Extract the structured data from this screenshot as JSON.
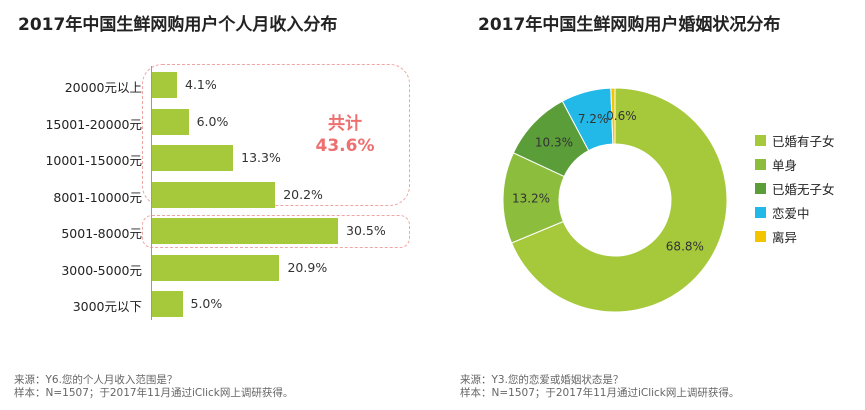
{
  "chart_data": [
    {
      "type": "bar",
      "orientation": "horizontal",
      "title": "2017年中国生鲜网购用户个人月收入分布",
      "categories": [
        "20000元以上",
        "15001-20000元",
        "10001-15000元",
        "8001-10000元",
        "5001-8000元",
        "3000-5000元",
        "3000元以下"
      ],
      "values": [
        4.1,
        6.0,
        13.3,
        20.2,
        30.5,
        20.9,
        5.0
      ],
      "value_labels": [
        "4.1%",
        "6.0%",
        "13.3%",
        "20.2%",
        "30.5%",
        "20.9%",
        "5.0%"
      ],
      "bar_color": "#a6c93b",
      "annotation": {
        "line1": "共计",
        "line2": "43.6%",
        "color": "#ee6f6f"
      },
      "highlight_color": "#f0a5a5",
      "note": {
        "source": "来源：Y6.您的个人月收入范围是？",
        "sample": "样本：N=1507；于2017年11月通过iClick网上调研获得。"
      }
    },
    {
      "type": "pie",
      "donut": true,
      "title": "2017年中国生鲜网购用户婚姻状况分布",
      "slices": [
        {
          "label": "已婚有子女",
          "value": 68.8,
          "value_label": "68.8%",
          "color": "#a6c93b"
        },
        {
          "label": "单身",
          "value": 13.2,
          "value_label": "13.2%",
          "color": "#8cbd3c"
        },
        {
          "label": "已婚无子女",
          "value": 10.3,
          "value_label": "10.3%",
          "color": "#5b9e39"
        },
        {
          "label": "恋爱中",
          "value": 7.2,
          "value_label": "7.2%",
          "color": "#22b9e8"
        },
        {
          "label": "离异",
          "value": 0.6,
          "value_label": "0.6%",
          "color": "#f2c500"
        }
      ],
      "legend_position": "right",
      "note": {
        "source": "来源：Y3.您的恋爱或婚姻状态是？",
        "sample": "样本：N=1507；于2017年11月通过iClick网上调研获得。"
      }
    }
  ]
}
